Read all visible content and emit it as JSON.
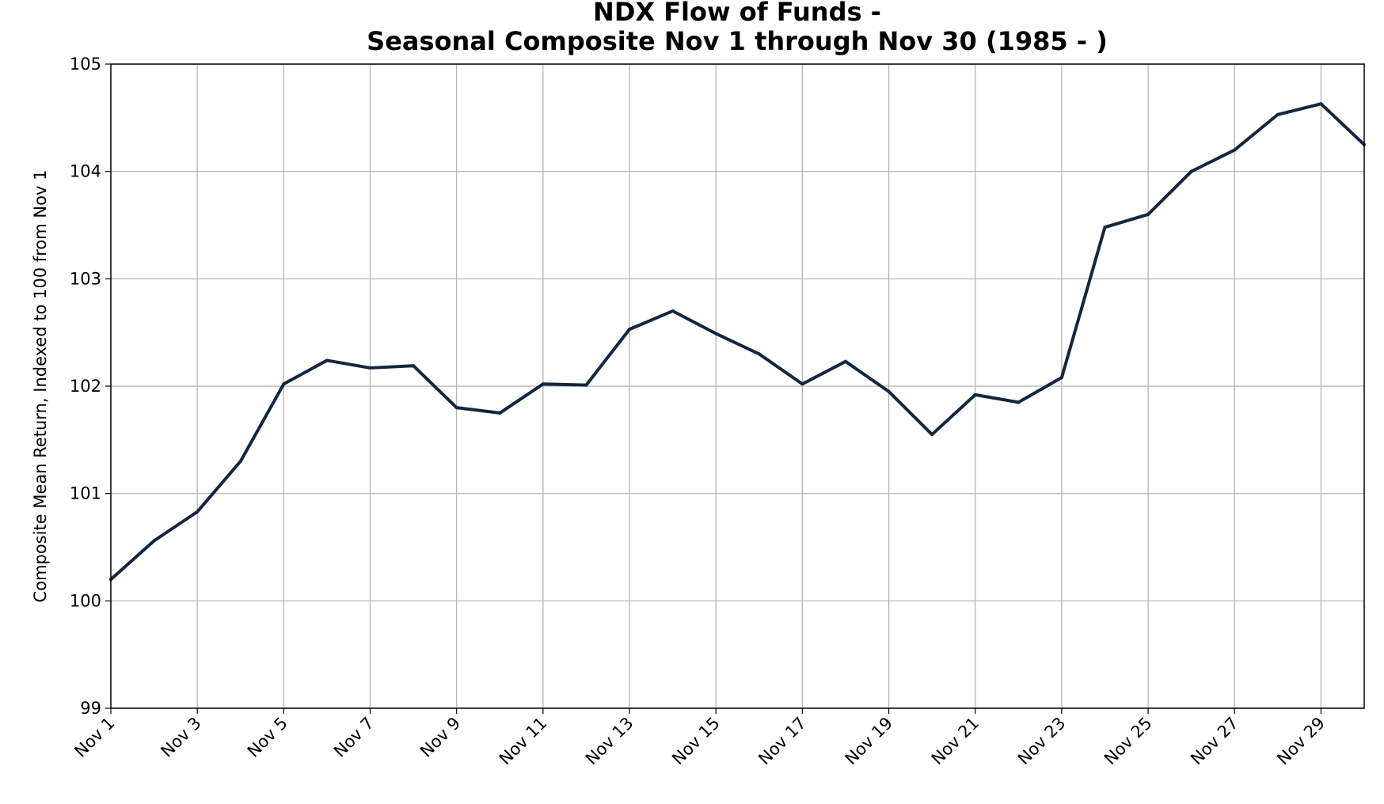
{
  "chart_data": {
    "type": "line",
    "title_line1": "NDX Flow of Funds -",
    "title_line2": "Seasonal Composite Nov 1 through Nov 30 (1985 - )",
    "xlabel": "",
    "ylabel": "Composite Mean Return, Indexed to 100 from Nov 1",
    "x": [
      1,
      2,
      3,
      4,
      5,
      6,
      7,
      8,
      9,
      10,
      11,
      12,
      13,
      14,
      15,
      16,
      17,
      18,
      19,
      20,
      21,
      22,
      23,
      24,
      25,
      26,
      27,
      28,
      29,
      30
    ],
    "series": [
      {
        "name": "NDX",
        "color": "#13263f",
        "values": [
          100.2,
          100.56,
          100.83,
          101.3,
          102.02,
          102.24,
          102.17,
          102.19,
          101.8,
          101.75,
          102.02,
          102.01,
          102.53,
          102.7,
          102.49,
          102.3,
          102.02,
          102.23,
          101.95,
          101.55,
          101.92,
          101.85,
          102.08,
          103.48,
          103.6,
          104.0,
          104.2,
          104.53,
          104.63,
          104.25
        ]
      }
    ],
    "xlim": [
      1,
      30
    ],
    "ylim": [
      99,
      105
    ],
    "xticks": [
      1,
      3,
      5,
      7,
      9,
      11,
      13,
      15,
      17,
      19,
      21,
      23,
      25,
      27,
      29
    ],
    "xtick_labels": [
      "Nov 1",
      "Nov 3",
      "Nov 5",
      "Nov 7",
      "Nov 9",
      "Nov 11",
      "Nov 13",
      "Nov 15",
      "Nov 17",
      "Nov 19",
      "Nov 21",
      "Nov 23",
      "Nov 25",
      "Nov 27",
      "Nov 29"
    ],
    "yticks": [
      99,
      100,
      101,
      102,
      103,
      104,
      105
    ],
    "ytick_labels": [
      "99",
      "100",
      "101",
      "102",
      "103",
      "104",
      "105"
    ],
    "grid": true
  }
}
